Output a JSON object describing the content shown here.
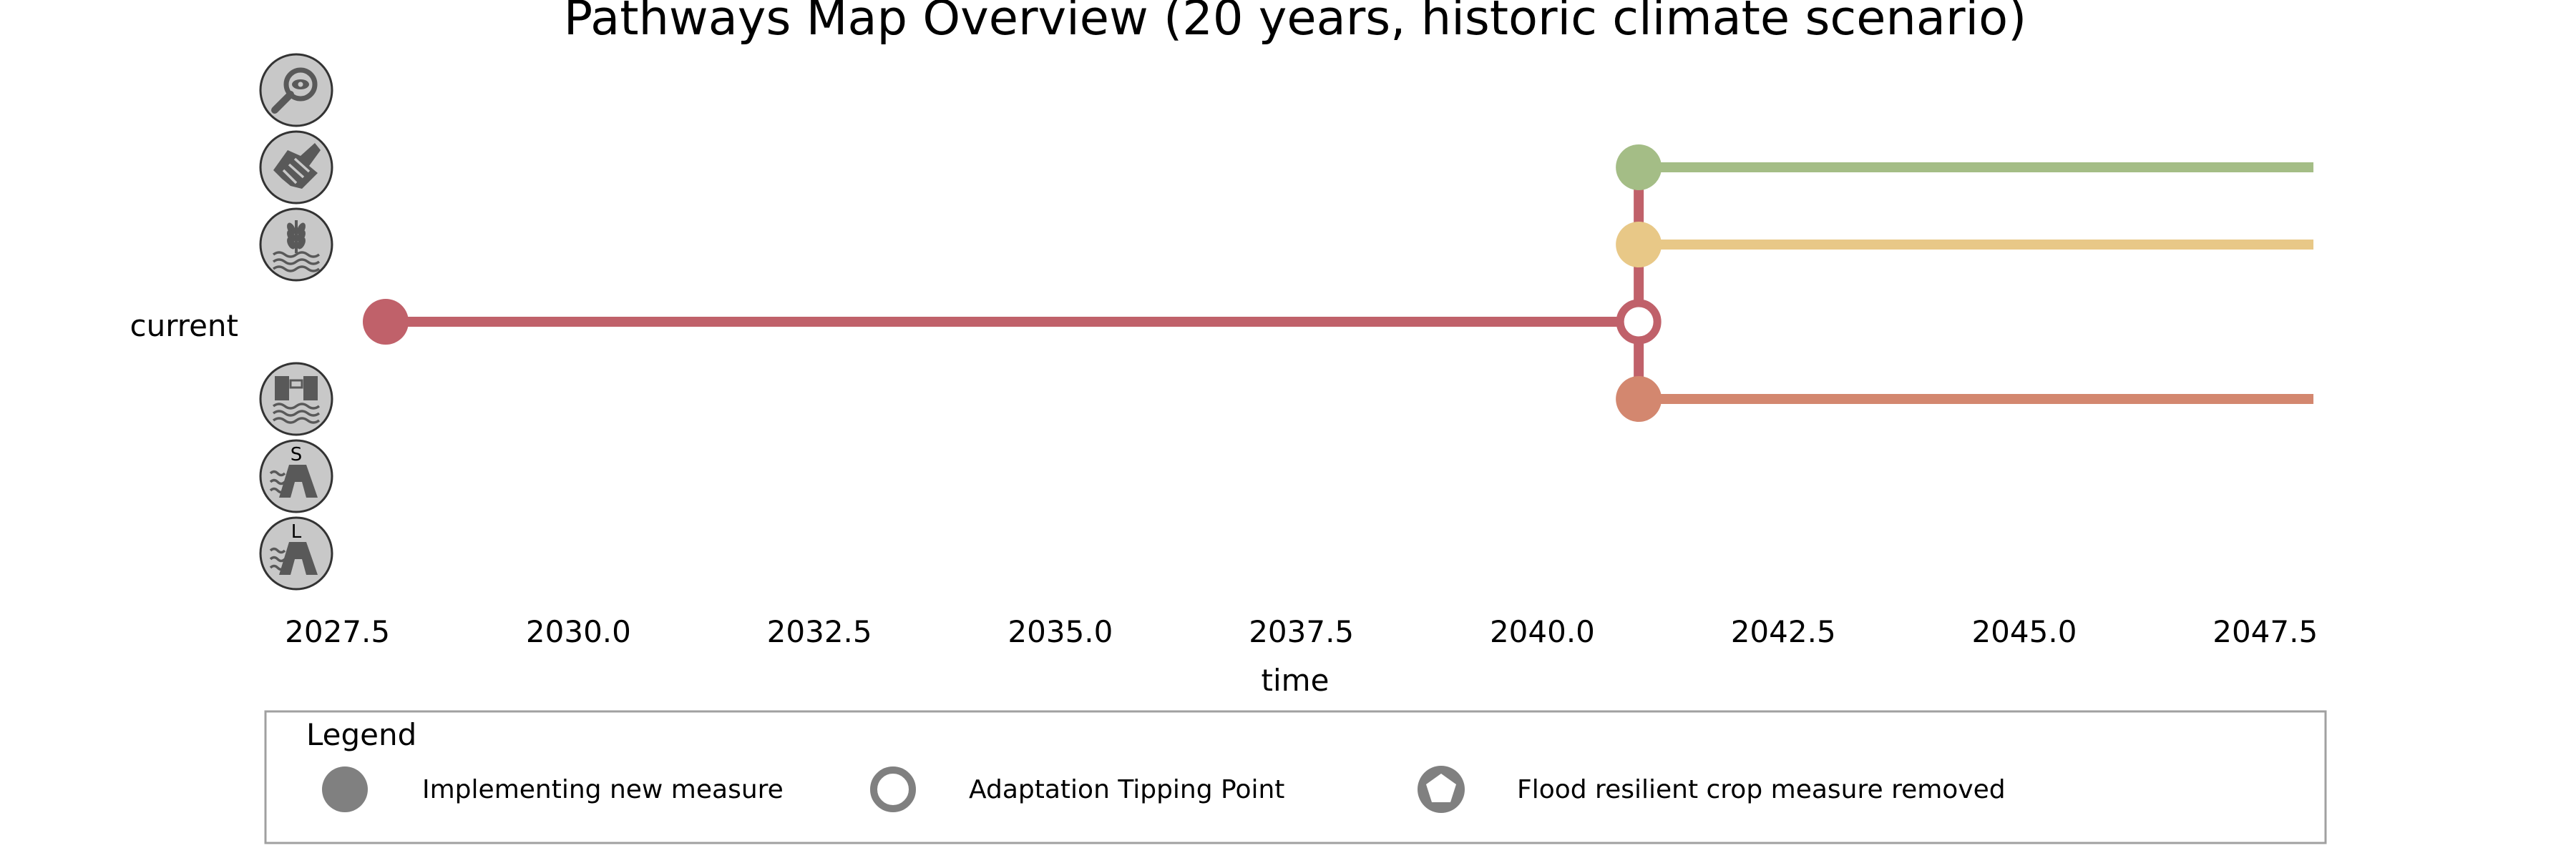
{
  "chart_data": {
    "type": "line",
    "title": "Pathways Map Overview (20 years, historic climate scenario)",
    "xlabel": "time",
    "ylabel": "",
    "xlim": [
      2026.3,
      2048.2
    ],
    "x_ticks": [
      2027.5,
      2030.0,
      2032.5,
      2035.0,
      2037.5,
      2040.0,
      2042.5,
      2045.0,
      2047.5
    ],
    "x_tick_labels": [
      "2027.5",
      "2030.0",
      "2032.5",
      "2035.0",
      "2037.5",
      "2040.0",
      "2042.5",
      "2045.0",
      "2047.5"
    ],
    "grid": false,
    "rows": [
      {
        "key": "monitoring",
        "y_index": 0,
        "icon": "magnifier-eye-icon"
      },
      {
        "key": "cooperation",
        "y_index": 1,
        "icon": "handshake-icon"
      },
      {
        "key": "crops",
        "y_index": 2,
        "icon": "flood-resilient-crop-icon"
      },
      {
        "key": "current",
        "y_index": 3,
        "label": "current"
      },
      {
        "key": "barrier",
        "y_index": 4,
        "icon": "flood-barrier-icon"
      },
      {
        "key": "dike_small",
        "y_index": 5,
        "icon": "dike-small-icon",
        "icon_letter": "S"
      },
      {
        "key": "dike_large",
        "y_index": 6,
        "icon": "dike-large-icon",
        "icon_letter": "L"
      }
    ],
    "series": [
      {
        "row": "current",
        "x": [
          2028.0,
          2041.0
        ],
        "color": "#c0616a"
      },
      {
        "row": "cooperation",
        "x": [
          2041.0,
          2048.0
        ],
        "color": "#a4bd86"
      },
      {
        "row": "crops",
        "x": [
          2041.0,
          2048.0
        ],
        "color": "#e8c887"
      },
      {
        "row": "barrier",
        "x": [
          2041.0,
          2048.0
        ],
        "color": "#d3876f"
      }
    ],
    "transitions": [
      {
        "x": 2041.0,
        "from_row": "cooperation",
        "to_row": "barrier",
        "color": "#c0616a"
      }
    ],
    "markers": [
      {
        "type": "implement",
        "x": 2028.0,
        "row": "current",
        "color": "#c0616a"
      },
      {
        "type": "implement",
        "x": 2041.0,
        "row": "cooperation",
        "color": "#a4bd86"
      },
      {
        "type": "implement",
        "x": 2041.0,
        "row": "crops",
        "color": "#e8c887"
      },
      {
        "type": "tipping_point",
        "x": 2041.0,
        "row": "current",
        "color": "#c0616a"
      },
      {
        "type": "implement",
        "x": 2041.0,
        "row": "barrier",
        "color": "#d3876f"
      }
    ],
    "legend": {
      "title": "Legend",
      "placement": "bottom",
      "entries": [
        {
          "label": "Implementing new measure",
          "marker": "filled-circle",
          "color": "#808080"
        },
        {
          "label": "Adaptation Tipping Point",
          "marker": "open-circle",
          "color": "#808080"
        },
        {
          "label": "Flood resilient crop measure removed",
          "marker": "pentagon-in-circle",
          "color": "#808080"
        }
      ]
    },
    "colors": {
      "icon_fill": "#c8c8c8",
      "icon_stroke": "#595959",
      "axis_text": "#000000",
      "current_label": "#c0616a",
      "legend_border": "#a0a0a0"
    }
  }
}
